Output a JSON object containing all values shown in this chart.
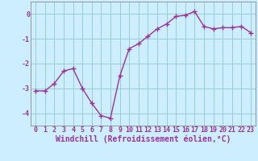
{
  "x": [
    0,
    1,
    2,
    3,
    4,
    5,
    6,
    7,
    8,
    9,
    10,
    11,
    12,
    13,
    14,
    15,
    16,
    17,
    18,
    19,
    20,
    21,
    22,
    23
  ],
  "y": [
    -3.1,
    -3.1,
    -2.8,
    -2.3,
    -2.2,
    -3.0,
    -3.6,
    -4.1,
    -4.2,
    -2.5,
    -1.4,
    -1.2,
    -0.9,
    -0.6,
    -0.4,
    -0.1,
    -0.05,
    0.1,
    -0.5,
    -0.6,
    -0.55,
    -0.55,
    -0.5,
    -0.75
  ],
  "line_color": "#993399",
  "marker": "+",
  "marker_size": 4,
  "bg_color": "#cceeff",
  "grid_color": "#99cccc",
  "xlabel": "Windchill (Refroidissement éolien,°C)",
  "xlim_left": -0.5,
  "xlim_right": 23.5,
  "ylim": [
    -4.5,
    0.5
  ],
  "yticks": [
    0,
    -1,
    -2,
    -3,
    -4
  ],
  "ytick_labels": [
    "0",
    "-1",
    "-2",
    "-3",
    "-4"
  ],
  "xtick_labels": [
    "0",
    "1",
    "2",
    "3",
    "4",
    "5",
    "6",
    "7",
    "8",
    "9",
    "10",
    "11",
    "12",
    "13",
    "14",
    "15",
    "16",
    "17",
    "18",
    "19",
    "20",
    "21",
    "22",
    "23"
  ],
  "label_color": "#993399",
  "tick_color": "#993399",
  "label_fontsize": 7,
  "tick_fontsize": 6,
  "linewidth": 1.0,
  "markeredgewidth": 1.0
}
